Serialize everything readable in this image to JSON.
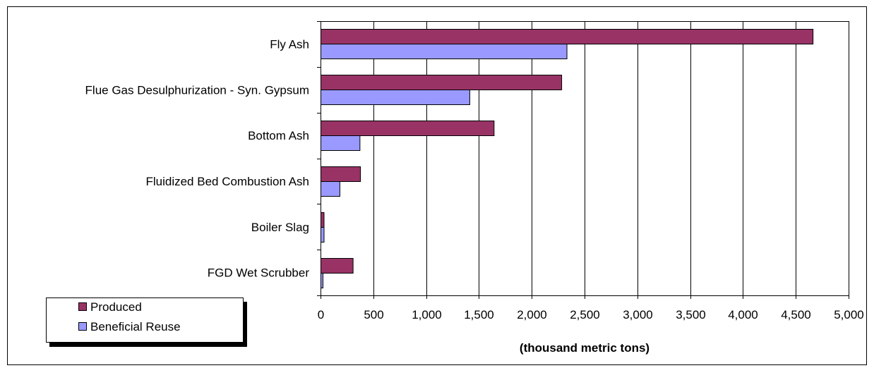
{
  "chart_data": {
    "type": "bar",
    "orientation": "horizontal",
    "categories": [
      "Fly Ash",
      "Flue Gas Desulphurization - Syn. Gypsum",
      "Bottom Ash",
      "Fluidized Bed Combustion Ash",
      "Boiler Slag",
      "FGD Wet Scrubber"
    ],
    "series": [
      {
        "name": "Produced",
        "color": "#993366",
        "values": [
          4660,
          2280,
          1640,
          375,
          30,
          305
        ]
      },
      {
        "name": "Beneficial Reuse",
        "color": "#9999ff",
        "values": [
          2330,
          1410,
          370,
          180,
          30,
          20
        ]
      }
    ],
    "title": "",
    "xlabel": "(thousand metric tons)",
    "ylabel": "",
    "xlim": [
      0,
      5000
    ],
    "xticks": [
      0,
      500,
      1000,
      1500,
      2000,
      2500,
      3000,
      3500,
      4000,
      4500,
      5000
    ],
    "xtick_labels": [
      "0",
      "500",
      "1,000",
      "1,500",
      "2,000",
      "2,500",
      "3,000",
      "3,500",
      "4,000",
      "4,500",
      "5,000"
    ],
    "grid": "vertical",
    "legend": "bottom-left"
  }
}
